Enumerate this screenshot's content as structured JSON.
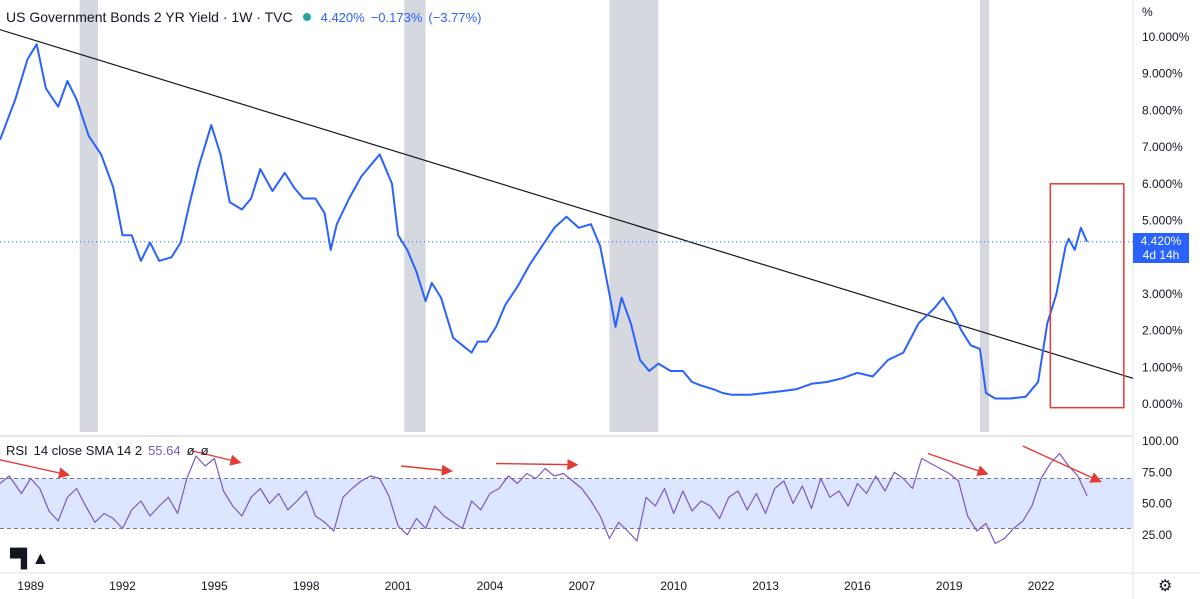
{
  "header": {
    "title": "US Government Bonds 2 YR Yield · 1W · TVC",
    "last": "4.420%",
    "change": "−0.173%",
    "change_pct": "(−3.77%)"
  },
  "price_tag": {
    "value": "4.420%",
    "countdown": "4d 14h"
  },
  "rsi_header": {
    "label": "RSI",
    "params": "14 close SMA 14 2",
    "value": "55.64",
    "extra1": "ø",
    "extra2": "ø"
  },
  "colors": {
    "price_line": "#2962ff",
    "rsi_line": "#7e57c2",
    "band_fill": "#dde6ff",
    "recession": "#d1d4dc",
    "annotation": "#e53935",
    "trendline": "#131722"
  },
  "icons": {
    "logo": "tradingview-logo-icon",
    "settings": "gear-icon"
  },
  "chart_data": [
    {
      "type": "line",
      "name": "US Government Bonds 2 YR Yield",
      "y_unit_label": "%",
      "x_ticks": [
        "1989",
        "1992",
        "1995",
        "1998",
        "2001",
        "2004",
        "2007",
        "2010",
        "2013",
        "2016",
        "2019",
        "2022"
      ],
      "y_ticks": [
        "0.000%",
        "1.000%",
        "2.000%",
        "3.000%",
        "4.000%",
        "5.000%",
        "6.000%",
        "7.000%",
        "8.000%",
        "9.000%",
        "10.000%"
      ],
      "ylim": [
        0,
        10
      ],
      "x_range": [
        1988.0,
        2025.0
      ],
      "series": [
        {
          "x": [
            1988.0,
            1988.5,
            1988.9,
            1989.2,
            1989.5,
            1989.9,
            1990.2,
            1990.5,
            1990.9,
            1991.3,
            1991.7,
            1992.0,
            1992.3,
            1992.6,
            1992.9,
            1993.2,
            1993.6,
            1993.9,
            1994.2,
            1994.5,
            1994.9,
            1995.2,
            1995.5,
            1995.9,
            1996.2,
            1996.5,
            1996.9,
            1997.3,
            1997.6,
            1997.9,
            1998.3,
            1998.6,
            1998.8,
            1999.0,
            1999.4,
            1999.8,
            2000.1,
            2000.4,
            2000.8,
            2001.0,
            2001.3,
            2001.6,
            2001.9,
            2002.1,
            2002.4,
            2002.8,
            2003.1,
            2003.4,
            2003.6,
            2003.9,
            2004.2,
            2004.5,
            2004.9,
            2005.3,
            2005.7,
            2006.1,
            2006.5,
            2006.9,
            2007.3,
            2007.6,
            2007.9,
            2008.1,
            2008.3,
            2008.6,
            2008.9,
            2009.2,
            2009.5,
            2009.9,
            2010.3,
            2010.6,
            2010.9,
            2011.3,
            2011.6,
            2011.9,
            2012.5,
            2013.0,
            2013.5,
            2014.0,
            2014.5,
            2015.0,
            2015.5,
            2016.0,
            2016.5,
            2017.0,
            2017.5,
            2018.0,
            2018.5,
            2018.8,
            2019.1,
            2019.4,
            2019.7,
            2020.0,
            2020.2,
            2020.5,
            2021.0,
            2021.5,
            2021.9,
            2022.2,
            2022.5,
            2022.8,
            2022.9,
            2023.1,
            2023.3,
            2023.5
          ],
          "y": [
            7.2,
            8.3,
            9.4,
            9.8,
            8.6,
            8.1,
            8.8,
            8.3,
            7.3,
            6.8,
            5.9,
            4.6,
            4.6,
            3.9,
            4.4,
            3.9,
            4.0,
            4.4,
            5.5,
            6.5,
            7.6,
            6.8,
            5.5,
            5.3,
            5.6,
            6.4,
            5.8,
            6.3,
            5.9,
            5.6,
            5.6,
            5.2,
            4.2,
            4.9,
            5.6,
            6.2,
            6.5,
            6.8,
            6.0,
            4.6,
            4.2,
            3.6,
            2.8,
            3.3,
            2.9,
            1.8,
            1.6,
            1.4,
            1.7,
            1.7,
            2.1,
            2.7,
            3.2,
            3.8,
            4.3,
            4.8,
            5.1,
            4.8,
            4.9,
            4.3,
            3.0,
            2.1,
            2.9,
            2.2,
            1.2,
            0.9,
            1.1,
            0.9,
            0.9,
            0.6,
            0.5,
            0.4,
            0.3,
            0.25,
            0.25,
            0.3,
            0.35,
            0.4,
            0.55,
            0.6,
            0.7,
            0.85,
            0.75,
            1.2,
            1.4,
            2.2,
            2.6,
            2.9,
            2.5,
            2.0,
            1.6,
            1.5,
            0.3,
            0.15,
            0.15,
            0.2,
            0.6,
            2.2,
            3.0,
            4.3,
            4.5,
            4.2,
            4.8,
            4.42
          ]
        }
      ],
      "last_value": 4.42,
      "trendline": {
        "x": [
          1988.0,
          2025.0
        ],
        "y": [
          10.2,
          0.7
        ]
      },
      "recession_periods": [
        [
          1990.6,
          1991.2
        ],
        [
          2001.2,
          2001.9
        ],
        [
          2007.9,
          2009.5
        ],
        [
          2020.0,
          2020.3
        ]
      ]
    },
    {
      "type": "line",
      "name": "RSI",
      "y_ticks": [
        "25.00",
        "50.00",
        "75.00",
        "100.00"
      ],
      "ylim": [
        10,
        100
      ],
      "band": [
        30,
        70
      ],
      "x_range": [
        1988.0,
        2025.0
      ],
      "series": [
        {
          "x": [
            1988.0,
            1988.3,
            1988.7,
            1989.0,
            1989.3,
            1989.6,
            1989.9,
            1990.2,
            1990.5,
            1990.8,
            1991.1,
            1991.4,
            1991.7,
            1992.0,
            1992.3,
            1992.6,
            1992.9,
            1993.2,
            1993.5,
            1993.8,
            1994.1,
            1994.4,
            1994.7,
            1995.0,
            1995.3,
            1995.6,
            1995.9,
            1996.2,
            1996.5,
            1996.8,
            1997.1,
            1997.4,
            1997.7,
            1998.0,
            1998.3,
            1998.6,
            1998.9,
            1999.2,
            1999.5,
            1999.8,
            2000.1,
            2000.4,
            2000.7,
            2001.0,
            2001.3,
            2001.6,
            2001.9,
            2002.2,
            2002.5,
            2002.8,
            2003.1,
            2003.4,
            2003.7,
            2004.0,
            2004.3,
            2004.6,
            2004.9,
            2005.2,
            2005.5,
            2005.8,
            2006.1,
            2006.4,
            2006.7,
            2007.0,
            2007.3,
            2007.6,
            2007.9,
            2008.2,
            2008.5,
            2008.8,
            2009.1,
            2009.4,
            2009.7,
            2010.0,
            2010.3,
            2010.6,
            2010.9,
            2011.2,
            2011.5,
            2011.8,
            2012.1,
            2012.4,
            2012.7,
            2013.0,
            2013.3,
            2013.6,
            2013.9,
            2014.2,
            2014.5,
            2014.8,
            2015.1,
            2015.4,
            2015.7,
            2016.0,
            2016.3,
            2016.6,
            2016.9,
            2017.2,
            2017.5,
            2017.8,
            2018.1,
            2018.4,
            2018.7,
            2019.0,
            2019.3,
            2019.6,
            2019.9,
            2020.2,
            2020.5,
            2020.8,
            2021.1,
            2021.4,
            2021.7,
            2022.0,
            2022.3,
            2022.6,
            2022.9,
            2023.2,
            2023.5
          ],
          "y": [
            66,
            72,
            58,
            70,
            62,
            44,
            36,
            55,
            62,
            48,
            35,
            42,
            38,
            30,
            45,
            52,
            40,
            48,
            55,
            42,
            70,
            88,
            80,
            86,
            60,
            48,
            40,
            55,
            62,
            50,
            58,
            45,
            52,
            60,
            40,
            35,
            28,
            55,
            62,
            68,
            72,
            70,
            56,
            32,
            25,
            38,
            30,
            48,
            40,
            35,
            30,
            52,
            45,
            58,
            62,
            72,
            66,
            74,
            70,
            78,
            72,
            74,
            68,
            62,
            52,
            40,
            22,
            35,
            28,
            20,
            55,
            48,
            62,
            42,
            60,
            44,
            52,
            48,
            38,
            55,
            60,
            45,
            58,
            42,
            62,
            68,
            50,
            64,
            46,
            70,
            55,
            60,
            48,
            66,
            58,
            72,
            60,
            75,
            70,
            62,
            86,
            82,
            78,
            74,
            68,
            40,
            28,
            34,
            18,
            22,
            30,
            36,
            48,
            70,
            82,
            90,
            80,
            72,
            56
          ]
        }
      ],
      "annotations_arrows": 7
    }
  ]
}
